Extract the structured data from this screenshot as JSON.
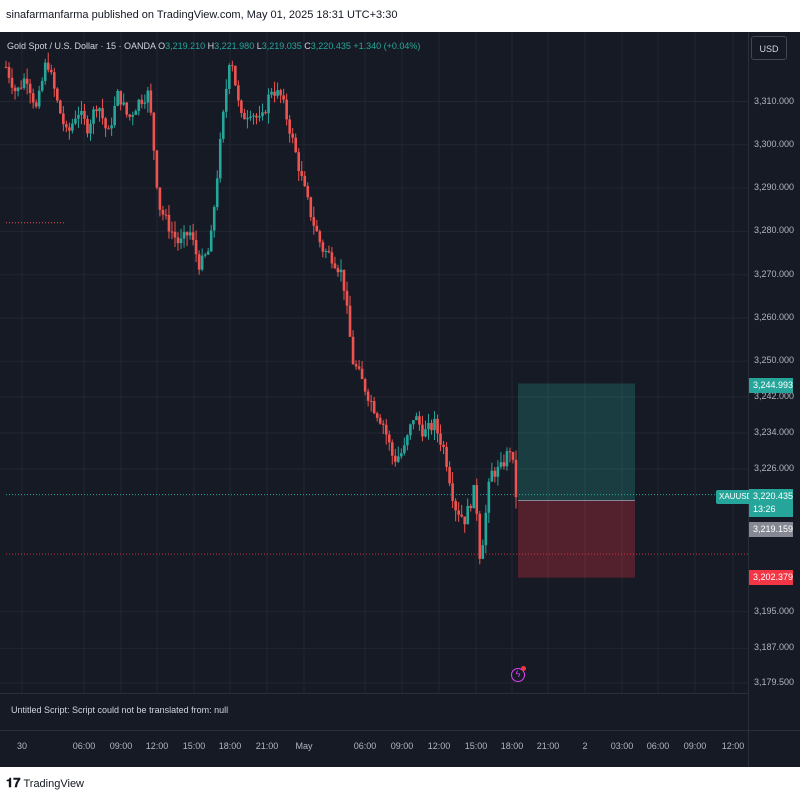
{
  "publisher_line": "sinafarmanfarma published on TradingView.com, May 01, 2025 18:31 UTC+3:30",
  "legend": {
    "symbol": "Gold Spot / U.S. Dollar · 15 · OANDA",
    "o_key": "O",
    "o_val": "3,219.210",
    "h_key": "H",
    "h_val": "3,221.980",
    "l_key": "L",
    "l_val": "3,219.035",
    "c_key": "C",
    "c_val": "3,220.435",
    "change": "+1.340 (+0.04%)"
  },
  "currency_button": "USD",
  "status_text": "Untitled Script: Script could not be translated from: null",
  "footer_logo": "TradingView",
  "symbol_badge": "XAUUSD",
  "price_labels": {
    "target": "3,244.993",
    "last": "3,220.435",
    "countdown": "13:26",
    "entry": "3,219.159",
    "stop": "3,202.379"
  },
  "colors": {
    "background": "#161a25",
    "up": "#26a69a",
    "down": "#ef5350",
    "profit_zone": "#26a69a",
    "loss_zone": "#f23645",
    "alert": "#e040fb"
  },
  "chart_data": {
    "type": "candlestick",
    "title": "Gold Spot / U.S. Dollar · 15 · OANDA",
    "ylim": [
      3175,
      3330
    ],
    "yticks": [
      3310.0,
      3300.0,
      3290.0,
      3280.0,
      3270.0,
      3260.0,
      3250.0,
      3242.0,
      3234.0,
      3226.0,
      3195.0,
      3187.0,
      3179.5
    ],
    "ytick_labels": [
      "3,310.000",
      "3,300.000",
      "3,290.000",
      "3,280.000",
      "3,270.000",
      "3,260.000",
      "3,250.000",
      "3,242.000",
      "3,234.000",
      "3,226.000",
      "3,195.000",
      "3,187.000",
      "3,179.500"
    ],
    "xticks": [
      "30",
      "06:00",
      "09:00",
      "12:00",
      "15:00",
      "18:00",
      "21:00",
      "May",
      "06:00",
      "09:00",
      "12:00",
      "15:00",
      "18:00",
      "21:00",
      "2",
      "03:00",
      "06:00",
      "09:00",
      "12:00"
    ],
    "close_path": [
      {
        "t": 0,
        "p": 3318
      },
      {
        "t": 0.02,
        "p": 3312
      },
      {
        "t": 0.04,
        "p": 3316
      },
      {
        "t": 0.06,
        "p": 3308
      },
      {
        "t": 0.08,
        "p": 3320
      },
      {
        "t": 0.1,
        "p": 3310
      },
      {
        "t": 0.12,
        "p": 3302
      },
      {
        "t": 0.14,
        "p": 3308
      },
      {
        "t": 0.16,
        "p": 3304
      },
      {
        "t": 0.18,
        "p": 3310
      },
      {
        "t": 0.2,
        "p": 3302
      },
      {
        "t": 0.22,
        "p": 3312
      },
      {
        "t": 0.24,
        "p": 3306
      },
      {
        "t": 0.26,
        "p": 3310
      },
      {
        "t": 0.28,
        "p": 3312
      },
      {
        "t": 0.3,
        "p": 3286
      },
      {
        "t": 0.32,
        "p": 3281
      },
      {
        "t": 0.34,
        "p": 3277
      },
      {
        "t": 0.36,
        "p": 3280
      },
      {
        "t": 0.38,
        "p": 3272
      },
      {
        "t": 0.4,
        "p": 3276
      },
      {
        "t": 0.42,
        "p": 3300
      },
      {
        "t": 0.44,
        "p": 3322
      },
      {
        "t": 0.46,
        "p": 3306
      },
      {
        "t": 0.48,
        "p": 3308
      },
      {
        "t": 0.5,
        "p": 3305
      },
      {
        "t": 0.52,
        "p": 3313
      },
      {
        "t": 0.54,
        "p": 3311
      },
      {
        "t": 0.56,
        "p": 3302
      },
      {
        "t": 0.58,
        "p": 3292
      },
      {
        "t": 0.6,
        "p": 3283
      },
      {
        "t": 0.62,
        "p": 3276
      },
      {
        "t": 0.64,
        "p": 3274
      },
      {
        "t": 0.66,
        "p": 3270
      },
      {
        "t": 0.68,
        "p": 3250
      },
      {
        "t": 0.7,
        "p": 3245
      },
      {
        "t": 0.72,
        "p": 3240
      },
      {
        "t": 0.74,
        "p": 3236
      },
      {
        "t": 0.76,
        "p": 3228
      },
      {
        "t": 0.78,
        "p": 3230
      },
      {
        "t": 0.8,
        "p": 3238
      },
      {
        "t": 0.82,
        "p": 3234
      },
      {
        "t": 0.84,
        "p": 3236
      },
      {
        "t": 0.86,
        "p": 3230
      },
      {
        "t": 0.88,
        "p": 3218
      },
      {
        "t": 0.9,
        "p": 3215
      },
      {
        "t": 0.92,
        "p": 3222
      },
      {
        "t": 0.93,
        "p": 3206
      },
      {
        "t": 0.95,
        "p": 3225
      },
      {
        "t": 0.97,
        "p": 3226
      },
      {
        "t": 0.99,
        "p": 3231
      },
      {
        "t": 1,
        "p": 3220.435
      }
    ],
    "position": {
      "entry": 3219.159,
      "target": 3244.993,
      "stop": 3202.379
    },
    "last_price": 3220.435,
    "horizontal_levels": [
      3282,
      3207.5
    ]
  }
}
